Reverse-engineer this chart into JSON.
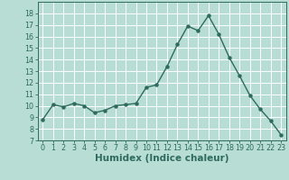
{
  "x": [
    0,
    1,
    2,
    3,
    4,
    5,
    6,
    7,
    8,
    9,
    10,
    11,
    12,
    13,
    14,
    15,
    16,
    17,
    18,
    19,
    20,
    21,
    22,
    23
  ],
  "y": [
    8.8,
    10.1,
    9.9,
    10.2,
    10.0,
    9.4,
    9.6,
    10.0,
    10.1,
    10.2,
    11.6,
    11.8,
    13.4,
    15.3,
    16.9,
    16.5,
    17.8,
    16.2,
    14.2,
    12.6,
    10.9,
    9.7,
    8.7,
    7.5
  ],
  "line_color": "#2e6b5e",
  "marker": "o",
  "marker_size": 2.2,
  "bg_color": "#b8ddd5",
  "grid_color": "#ffffff",
  "xlabel": "Humidex (Indice chaleur)",
  "ylim": [
    7,
    19
  ],
  "xlim": [
    -0.5,
    23.5
  ],
  "yticks": [
    7,
    8,
    9,
    10,
    11,
    12,
    13,
    14,
    15,
    16,
    17,
    18
  ],
  "xticks": [
    0,
    1,
    2,
    3,
    4,
    5,
    6,
    7,
    8,
    9,
    10,
    11,
    12,
    13,
    14,
    15,
    16,
    17,
    18,
    19,
    20,
    21,
    22,
    23
  ],
  "tick_labelsize": 5.8,
  "xlabel_fontsize": 7.5,
  "line_width": 1.0
}
